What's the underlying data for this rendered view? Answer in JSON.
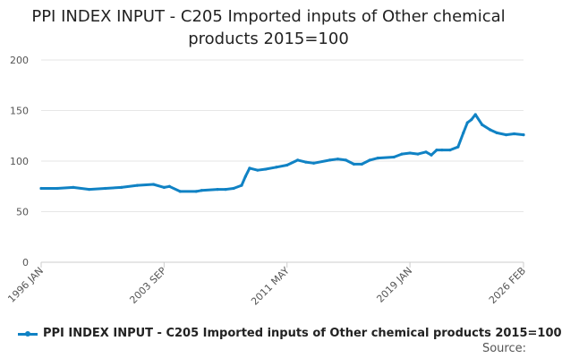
{
  "title_line1": "PPI INDEX INPUT - C205 Imported inputs of Other chemical",
  "title_line2": "products 2015=100",
  "source_label": "Source:",
  "colors": {
    "series": "#1082c4",
    "grid": "#e6e6e6",
    "axis": "#cccccc"
  },
  "chart_data": {
    "type": "line",
    "title": "PPI INDEX INPUT - C205 Imported inputs of Other chemical products 2015=100",
    "xlabel": "",
    "ylabel": "",
    "ylim": [
      0,
      200
    ],
    "yticks": [
      0,
      50,
      100,
      150,
      200
    ],
    "xlim": [
      "1996 JAN",
      "2026 FEB"
    ],
    "xticks": [
      "1996 JAN",
      "2003 SEP",
      "2011 MAY",
      "2019 JAN",
      "2026 FEB"
    ],
    "grid": true,
    "legend": "bottom",
    "series": [
      {
        "name": "PPI INDEX INPUT - C205 Imported inputs of Other chemical products 2015=100",
        "x": [
          "1996 JAN",
          "1997 JAN",
          "1998 JAN",
          "1999 JAN",
          "2000 JAN",
          "2001 JAN",
          "2002 JAN",
          "2003 JAN",
          "2003 SEP",
          "2004 JAN",
          "2004 SEP",
          "2005 SEP",
          "2006 JAN",
          "2007 JAN",
          "2007 JUL",
          "2008 JAN",
          "2008 JUL",
          "2008 OCT",
          "2009 JAN",
          "2009 JUL",
          "2010 JAN",
          "2010 SEP",
          "2011 MAY",
          "2012 JAN",
          "2012 JUL",
          "2013 JAN",
          "2014 JAN",
          "2014 JUL",
          "2015 JAN",
          "2015 JUL",
          "2016 JAN",
          "2016 JUL",
          "2017 JAN",
          "2018 JAN",
          "2018 JUL",
          "2019 JAN",
          "2019 JUL",
          "2020 JAN",
          "2020 MAY",
          "2020 SEP",
          "2021 JAN",
          "2021 JUL",
          "2022 JAN",
          "2022 MAY",
          "2022 AUG",
          "2022 NOV",
          "2023 FEB",
          "2023 JUL",
          "2024 JAN",
          "2024 JUN",
          "2025 JAN",
          "2025 JUL",
          "2026 FEB"
        ],
        "values": [
          73,
          73,
          74,
          72,
          73,
          74,
          76,
          77,
          74,
          75,
          70,
          70,
          71,
          72,
          72,
          73,
          76,
          85,
          93,
          91,
          92,
          94,
          96,
          101,
          99,
          98,
          101,
          102,
          101,
          97,
          97,
          101,
          103,
          104,
          107,
          108,
          107,
          109,
          106,
          111,
          111,
          111,
          114,
          128,
          138,
          141,
          146,
          136,
          131,
          128,
          126,
          127,
          126
        ]
      }
    ]
  }
}
